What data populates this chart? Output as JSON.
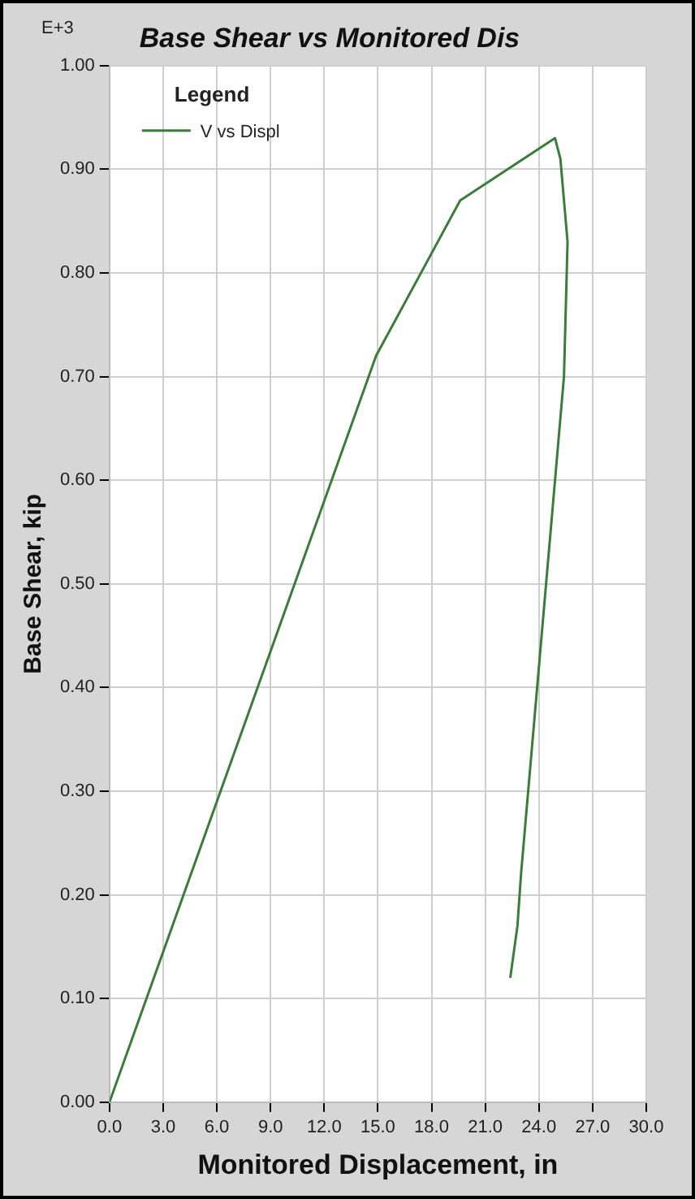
{
  "chart_data": {
    "type": "line",
    "title": "Base Shear vs Monitored Dis",
    "xlabel": "Monitored Displacement, in",
    "ylabel": "Base Shear, kip",
    "legend_title": "Legend",
    "annotations": [
      "E+3"
    ],
    "series": [
      {
        "name": "V vs Displ",
        "color": "#3a7d3a",
        "x": [
          0,
          14.9,
          19.6,
          24.9,
          25.2,
          25.6,
          25.4,
          23.0,
          22.8,
          22.4
        ],
        "values": [
          0,
          0.72,
          0.87,
          0.93,
          0.91,
          0.83,
          0.7,
          0.22,
          0.17,
          0.12
        ]
      }
    ],
    "xlim": [
      0,
      30
    ],
    "xticks": [
      {
        "value": 0,
        "label": "0.0"
      },
      {
        "value": 3,
        "label": "3.0"
      },
      {
        "value": 6,
        "label": "6.0"
      },
      {
        "value": 9,
        "label": "9.0"
      },
      {
        "value": 12,
        "label": "12.0"
      },
      {
        "value": 15,
        "label": "15.0"
      },
      {
        "value": 18,
        "label": "18.0"
      },
      {
        "value": 21,
        "label": "21.0"
      },
      {
        "value": 24,
        "label": "24.0"
      },
      {
        "value": 27,
        "label": "27.0"
      },
      {
        "value": 30,
        "label": "30.0"
      }
    ],
    "ylim": [
      0,
      1
    ],
    "yticks": [
      {
        "value": 0,
        "label": "0.00"
      },
      {
        "value": 0.1,
        "label": "0.10"
      },
      {
        "value": 0.2,
        "label": "0.20"
      },
      {
        "value": 0.3,
        "label": "0.30"
      },
      {
        "value": 0.4,
        "label": "0.40"
      },
      {
        "value": 0.5,
        "label": "0.50"
      },
      {
        "value": 0.6,
        "label": "0.60"
      },
      {
        "value": 0.7,
        "label": "0.70"
      },
      {
        "value": 0.8,
        "label": "0.80"
      },
      {
        "value": 0.9,
        "label": "0.90"
      },
      {
        "value": 1,
        "label": "1.00"
      }
    ],
    "grid": true,
    "legend": "top left",
    "marker": "none",
    "line_style": "solid"
  }
}
